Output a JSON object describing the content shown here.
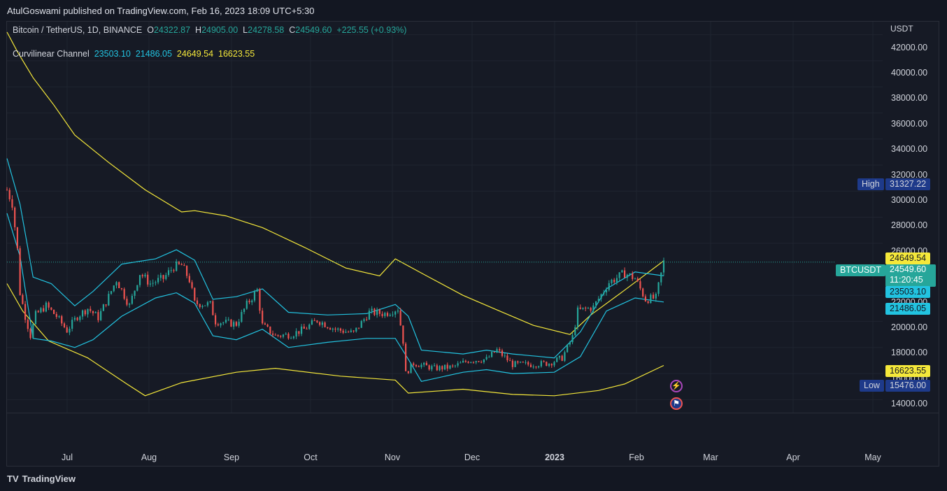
{
  "header": {
    "published": "AtulGoswami published on TradingView.com, Feb 16, 2023 18:09 UTC+5:30"
  },
  "legend": {
    "symbol": "Bitcoin / TetherUS, 1D, BINANCE",
    "o_label": "O",
    "o": "24322.87",
    "h_label": "H",
    "h": "24905.00",
    "l_label": "L",
    "l": "24278.58",
    "c_label": "C",
    "c": "24549.60",
    "change": "+225.55 (+0.93%)",
    "indicator": "Curvilinear Channel",
    "ind_v1": "23503.10",
    "ind_v2": "21486.05",
    "ind_v3": "24649.54",
    "ind_v4": "16623.55"
  },
  "axis": {
    "currency": "USDT",
    "y_ticks": [
      "42000.00",
      "40000.00",
      "38000.00",
      "36000.00",
      "34000.00",
      "32000.00",
      "30000.00",
      "28000.00",
      "26000.00",
      "22000.00",
      "20000.00",
      "18000.00",
      "16000.00",
      "14000.00"
    ],
    "x_ticks": [
      "Jul",
      "Aug",
      "Sep",
      "Oct",
      "Nov",
      "Dec",
      "2023",
      "Feb",
      "Mar",
      "Apr",
      "May"
    ]
  },
  "tags": {
    "high_label": "High",
    "high_value": "31327.22",
    "low_label": "Low",
    "low_value": "15476.00",
    "symbol": "BTCUSDT",
    "price": "24549.60",
    "countdown": "11:20:45",
    "upper_outer": "24649.54",
    "upper_inner": "23503.10",
    "lower_inner": "21486.05",
    "lower_outer": "16623.55"
  },
  "footer": {
    "brand": "TradingView",
    "logo": "TV"
  },
  "colors": {
    "background": "#161a25",
    "up": "#26a69a",
    "down": "#ef5350",
    "inner_channel": "#22c3e0",
    "outer_channel": "#f5e83a",
    "high_low_tag": "#1e3a8a"
  },
  "chart_data": {
    "type": "candlestick",
    "symbol": "BTCUSDT",
    "timeframe": "1D",
    "ylim": [
      13000,
      43000
    ],
    "x_range": [
      "2022-06-09",
      "2023-05-11"
    ],
    "close_path": [
      [
        "2022-06-09",
        30100
      ],
      [
        "2022-06-11",
        29100
      ],
      [
        "2022-06-13",
        25500
      ],
      [
        "2022-06-14",
        22200
      ],
      [
        "2022-06-16",
        20400
      ],
      [
        "2022-06-18",
        18900
      ],
      [
        "2022-06-20",
        20500
      ],
      [
        "2022-06-24",
        21200
      ],
      [
        "2022-06-28",
        20400
      ],
      [
        "2022-07-02",
        19300
      ],
      [
        "2022-07-06",
        20400
      ],
      [
        "2022-07-10",
        21000
      ],
      [
        "2022-07-14",
        20300
      ],
      [
        "2022-07-18",
        21900
      ],
      [
        "2022-07-21",
        23200
      ],
      [
        "2022-07-26",
        21200
      ],
      [
        "2022-07-30",
        23700
      ],
      [
        "2022-08-03",
        22900
      ],
      [
        "2022-08-08",
        23300
      ],
      [
        "2022-08-12",
        24200
      ],
      [
        "2022-08-15",
        24300
      ],
      [
        "2022-08-18",
        23200
      ],
      [
        "2022-08-20",
        21400
      ],
      [
        "2022-08-26",
        21300
      ],
      [
        "2022-08-28",
        20000
      ],
      [
        "2022-09-01",
        19900
      ],
      [
        "2022-09-05",
        19800
      ],
      [
        "2022-09-09",
        21300
      ],
      [
        "2022-09-13",
        22400
      ],
      [
        "2022-09-15",
        19700
      ],
      [
        "2022-09-20",
        18900
      ],
      [
        "2022-09-26",
        19000
      ],
      [
        "2022-10-01",
        19400
      ],
      [
        "2022-10-06",
        20100
      ],
      [
        "2022-10-13",
        19400
      ],
      [
        "2022-10-20",
        19100
      ],
      [
        "2022-10-26",
        20700
      ],
      [
        "2022-11-01",
        20600
      ],
      [
        "2022-11-06",
        21000
      ],
      [
        "2022-11-08",
        18500
      ],
      [
        "2022-11-09",
        16000
      ],
      [
        "2022-11-12",
        16800
      ],
      [
        "2022-11-20",
        16400
      ],
      [
        "2022-11-27",
        16500
      ],
      [
        "2022-12-03",
        17000
      ],
      [
        "2022-12-10",
        17100
      ],
      [
        "2022-12-14",
        17800
      ],
      [
        "2022-12-20",
        16700
      ],
      [
        "2022-12-27",
        16700
      ],
      [
        "2023-01-03",
        16800
      ],
      [
        "2023-01-08",
        17200
      ],
      [
        "2023-01-12",
        18800
      ],
      [
        "2023-01-14",
        20800
      ],
      [
        "2023-01-20",
        21100
      ],
      [
        "2023-01-26",
        23000
      ],
      [
        "2023-02-01",
        23700
      ],
      [
        "2023-02-05",
        23300
      ],
      [
        "2023-02-09",
        21700
      ],
      [
        "2023-02-13",
        21800
      ],
      [
        "2023-02-16",
        24550
      ]
    ],
    "series": [
      {
        "name": "23503.10",
        "role": "upper inner band",
        "last": 23503.1
      },
      {
        "name": "21486.05",
        "role": "lower inner band",
        "last": 21486.05
      },
      {
        "name": "24649.54",
        "role": "upper outer band",
        "last": 24649.54
      },
      {
        "name": "16623.55",
        "role": "lower outer band",
        "last": 16623.55
      }
    ],
    "outer_upper": [
      [
        "2022-06-09",
        42200
      ],
      [
        "2022-06-13",
        40700
      ],
      [
        "2022-06-19",
        38700
      ],
      [
        "2022-06-27",
        36600
      ],
      [
        "2022-07-05",
        34300
      ],
      [
        "2022-07-18",
        32200
      ],
      [
        "2022-08-01",
        30100
      ],
      [
        "2022-08-15",
        28400
      ],
      [
        "2022-08-20",
        28500
      ],
      [
        "2022-09-01",
        28100
      ],
      [
        "2022-09-15",
        27200
      ],
      [
        "2022-10-01",
        25700
      ],
      [
        "2022-10-17",
        24100
      ],
      [
        "2022-10-30",
        23500
      ],
      [
        "2022-11-05",
        24800
      ],
      [
        "2022-11-17",
        23500
      ],
      [
        "2022-12-01",
        22000
      ],
      [
        "2022-12-15",
        20800
      ],
      [
        "2022-12-28",
        19700
      ],
      [
        "2023-01-11",
        19000
      ],
      [
        "2023-01-19",
        20500
      ],
      [
        "2023-02-01",
        22400
      ],
      [
        "2023-02-16",
        24650
      ]
    ],
    "outer_lower": [
      [
        "2022-06-09",
        22900
      ],
      [
        "2022-06-15",
        20800
      ],
      [
        "2022-06-25",
        18500
      ],
      [
        "2022-07-10",
        17200
      ],
      [
        "2022-07-25",
        15200
      ],
      [
        "2022-08-01",
        14300
      ],
      [
        "2022-08-15",
        15300
      ],
      [
        "2022-09-05",
        16100
      ],
      [
        "2022-09-20",
        16400
      ],
      [
        "2022-10-15",
        15800
      ],
      [
        "2022-11-05",
        15500
      ],
      [
        "2022-11-10",
        14500
      ],
      [
        "2022-12-01",
        14800
      ],
      [
        "2022-12-20",
        14400
      ],
      [
        "2023-01-05",
        14300
      ],
      [
        "2023-01-22",
        14700
      ],
      [
        "2023-02-01",
        15200
      ],
      [
        "2023-02-16",
        16620
      ]
    ],
    "inner_upper": [
      [
        "2022-06-09",
        32500
      ],
      [
        "2022-06-14",
        29000
      ],
      [
        "2022-06-19",
        23400
      ],
      [
        "2022-06-26",
        22900
      ],
      [
        "2022-07-05",
        21200
      ],
      [
        "2022-07-12",
        22300
      ],
      [
        "2022-07-23",
        24400
      ],
      [
        "2022-08-05",
        24800
      ],
      [
        "2022-08-13",
        25500
      ],
      [
        "2022-08-20",
        24700
      ],
      [
        "2022-08-27",
        21700
      ],
      [
        "2022-09-05",
        21900
      ],
      [
        "2022-09-15",
        22500
      ],
      [
        "2022-09-25",
        20700
      ],
      [
        "2022-10-10",
        20500
      ],
      [
        "2022-10-25",
        20600
      ],
      [
        "2022-11-05",
        21300
      ],
      [
        "2022-11-10",
        20400
      ],
      [
        "2022-11-15",
        17800
      ],
      [
        "2022-12-01",
        17500
      ],
      [
        "2022-12-10",
        17800
      ],
      [
        "2022-12-20",
        17500
      ],
      [
        "2023-01-05",
        17200
      ],
      [
        "2023-01-15",
        19200
      ],
      [
        "2023-01-25",
        22500
      ],
      [
        "2023-02-05",
        23800
      ],
      [
        "2023-02-16",
        23500
      ]
    ],
    "inner_lower": [
      [
        "2022-06-09",
        28300
      ],
      [
        "2022-06-14",
        25000
      ],
      [
        "2022-06-19",
        18700
      ],
      [
        "2022-06-26",
        18500
      ],
      [
        "2022-07-05",
        18000
      ],
      [
        "2022-07-12",
        18600
      ],
      [
        "2022-07-23",
        20400
      ],
      [
        "2022-08-05",
        21800
      ],
      [
        "2022-08-13",
        22200
      ],
      [
        "2022-08-20",
        21400
      ],
      [
        "2022-08-27",
        18900
      ],
      [
        "2022-09-05",
        18600
      ],
      [
        "2022-09-15",
        19400
      ],
      [
        "2022-09-25",
        18000
      ],
      [
        "2022-10-10",
        18400
      ],
      [
        "2022-10-25",
        18700
      ],
      [
        "2022-11-05",
        18700
      ],
      [
        "2022-11-10",
        17100
      ],
      [
        "2022-11-15",
        15400
      ],
      [
        "2022-12-01",
        16100
      ],
      [
        "2022-12-10",
        16300
      ],
      [
        "2022-12-20",
        16000
      ],
      [
        "2023-01-05",
        16100
      ],
      [
        "2023-01-15",
        17300
      ],
      [
        "2023-01-25",
        20800
      ],
      [
        "2023-02-05",
        21800
      ],
      [
        "2023-02-16",
        21490
      ]
    ]
  }
}
